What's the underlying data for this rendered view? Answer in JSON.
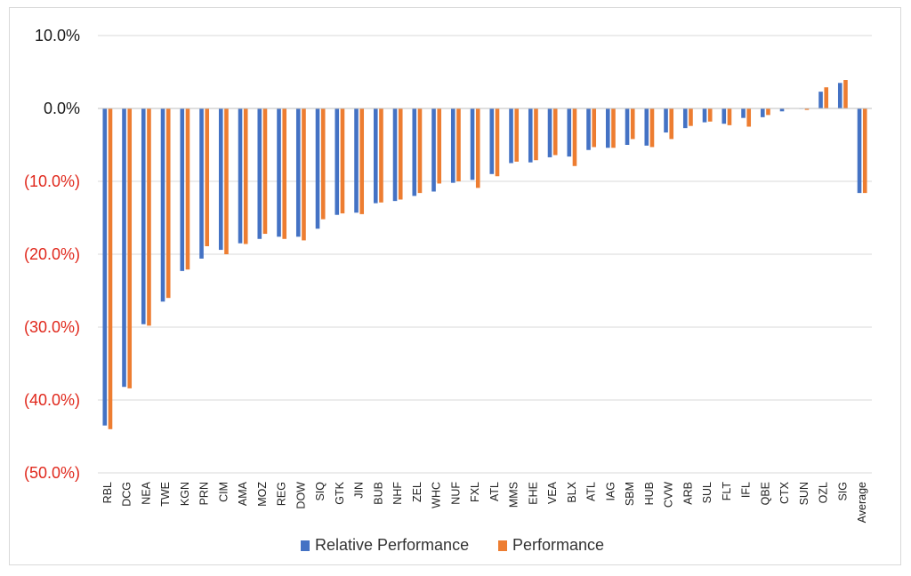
{
  "chart_data": {
    "type": "bar",
    "categories": [
      "RBL",
      "DCG",
      "NEA",
      "TWE",
      "KGN",
      "PRN",
      "CIM",
      "AMA",
      "MOZ",
      "REG",
      "DOW",
      "SIQ",
      "GTK",
      "JIN",
      "BUB",
      "NHF",
      "ZEL",
      "WHC",
      "NUF",
      "FXL",
      "ATL",
      "MMS",
      "EHE",
      "VEA",
      "BLX",
      "ATL",
      "IAG",
      "SBM",
      "HUB",
      "CVW",
      "ARB",
      "SUL",
      "FLT",
      "IFL",
      "QBE",
      "CTX",
      "SUN",
      "OZL",
      "SIG",
      "Average"
    ],
    "series": [
      {
        "name": "Relative Performance",
        "color": "#4472c4",
        "values": [
          -43.5,
          -38.2,
          -29.6,
          -26.5,
          -22.3,
          -20.6,
          -19.4,
          -18.5,
          -17.9,
          -17.6,
          -17.6,
          -16.5,
          -14.6,
          -14.3,
          -13.0,
          -12.7,
          -12.0,
          -11.4,
          -10.2,
          -9.8,
          -9.0,
          -7.5,
          -7.4,
          -6.7,
          -6.6,
          -5.7,
          -5.4,
          -5.0,
          -5.1,
          -3.3,
          -2.7,
          -1.9,
          -2.1,
          -1.3,
          -1.2,
          -0.4,
          0.0,
          2.3,
          3.5,
          -11.6
        ]
      },
      {
        "name": "Performance",
        "color": "#ed7d31",
        "values": [
          -44.0,
          -38.4,
          -29.8,
          -26.0,
          -22.1,
          -18.9,
          -20.0,
          -18.6,
          -17.2,
          -17.9,
          -18.1,
          -15.2,
          -14.4,
          -14.5,
          -12.9,
          -12.5,
          -11.6,
          -10.3,
          -10.0,
          -10.9,
          -9.3,
          -7.3,
          -7.1,
          -6.4,
          -7.9,
          -5.3,
          -5.4,
          -4.2,
          -5.3,
          -4.2,
          -2.4,
          -1.8,
          -2.3,
          -2.5,
          -0.9,
          0.0,
          -0.2,
          2.9,
          3.9,
          -11.6
        ]
      }
    ],
    "yticks": [
      "10.0%",
      "0.0%",
      "(10.0%)",
      "(20.0%)",
      "(30.0%)",
      "(40.0%)",
      "(50.0%)"
    ],
    "ylim": [
      -50,
      10
    ],
    "grid": true,
    "legend": "bottom",
    "tick_colors": {
      "positive": "#1a1a1a",
      "negative": "#e0281c"
    }
  }
}
